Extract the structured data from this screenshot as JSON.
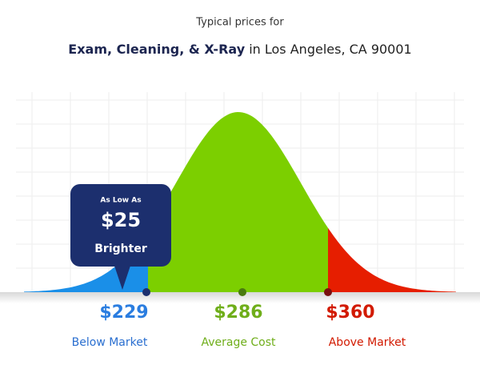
{
  "header": {
    "intro": "Typical prices for",
    "service": "Exam, Cleaning, & X-Ray",
    "location": " in Los Angeles, CA 90001"
  },
  "badge": {
    "caption": "As Low As",
    "price": "$25",
    "brand": "Brighter"
  },
  "markers": [
    {
      "price": "$229",
      "label": "Below Market"
    },
    {
      "price": "$286",
      "label": "Average Cost"
    },
    {
      "price": "$360",
      "label": "Above Market"
    }
  ]
}
